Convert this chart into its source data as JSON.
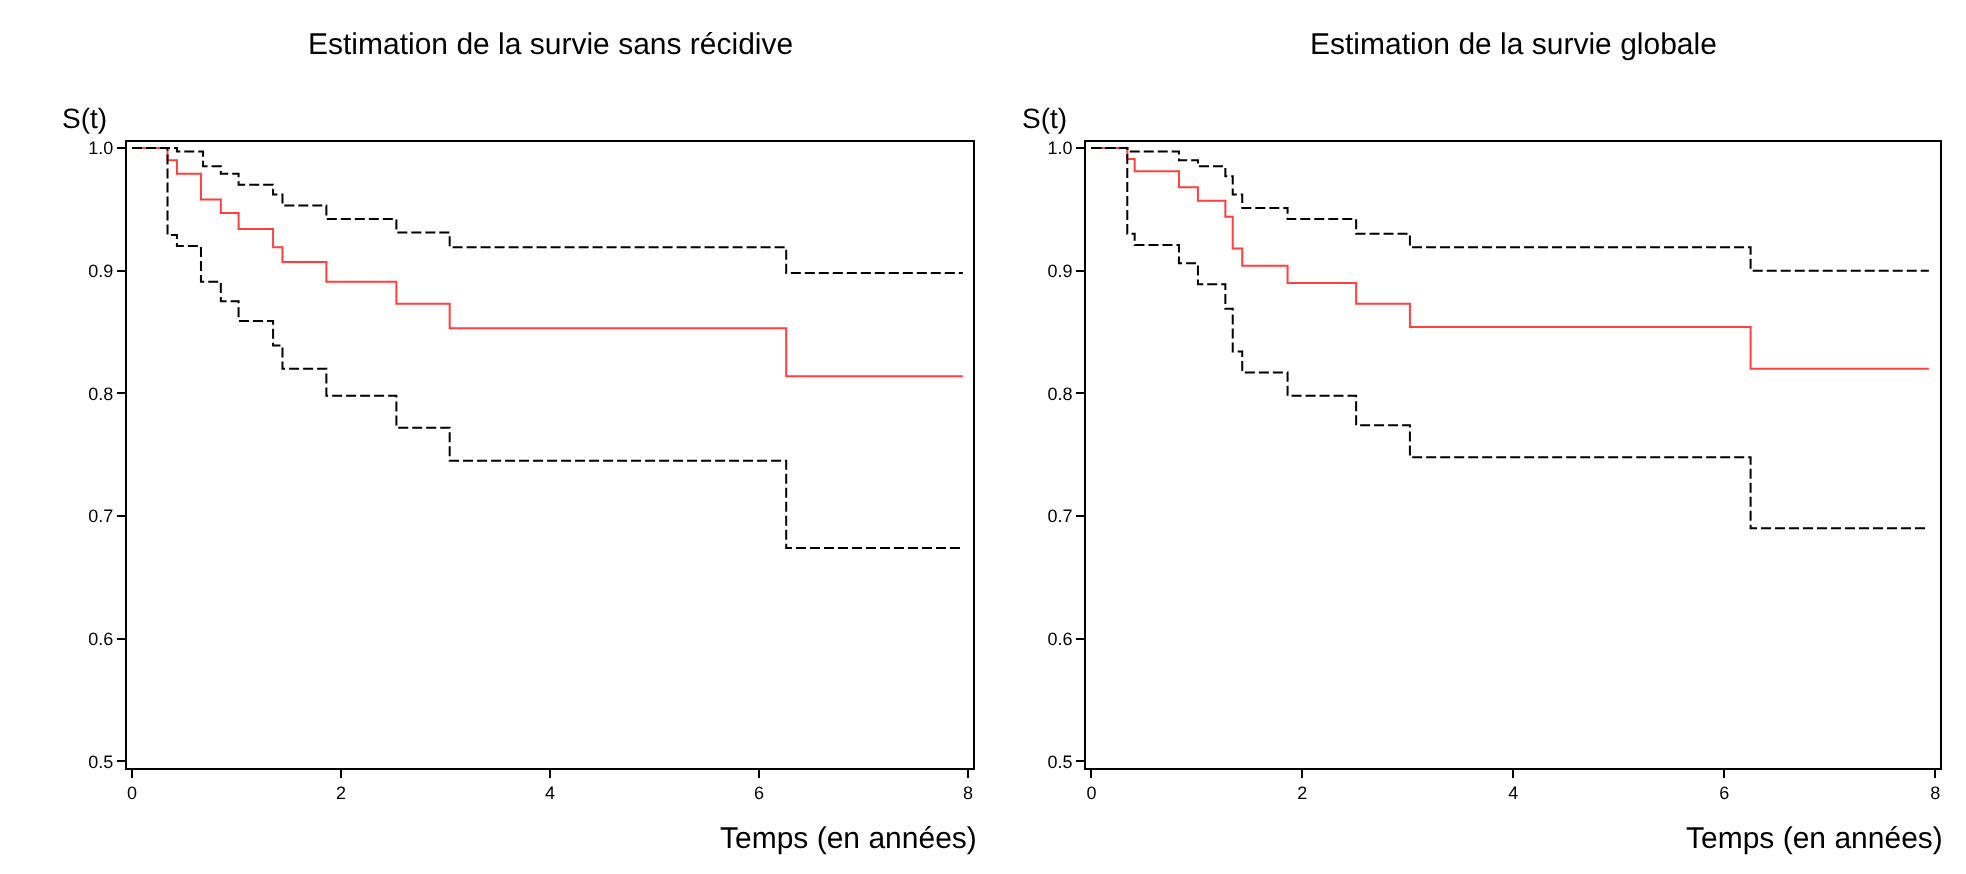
{
  "chart_data": [
    {
      "type": "step",
      "title": "Estimation de la survie sans récidive",
      "xlabel": "Temps (en années)",
      "ylabel": "S(t)",
      "xlim": [
        -0.05,
        8.05
      ],
      "ylim": [
        0.495,
        1.005
      ],
      "xticks": [
        0,
        2,
        4,
        6,
        8
      ],
      "yticks": [
        {
          "value": 0.5,
          "label": "0.5"
        },
        {
          "value": 0.6,
          "label": "0.6"
        },
        {
          "value": 0.7,
          "label": "0.7"
        },
        {
          "value": 0.8,
          "label": "0.8"
        },
        {
          "value": 0.9,
          "label": "0.9"
        },
        {
          "value": 1.0,
          "label": "1.0"
        }
      ],
      "marker": "none",
      "series": [
        {
          "color": "#ff4040",
          "line_style": "solid",
          "x": [
            0,
            0.34,
            0.43,
            0.66,
            0.85,
            1.02,
            1.35,
            1.44,
            1.86,
            2.53,
            3.04,
            6.26,
            7.95
          ],
          "values": [
            1.0,
            0.99,
            0.979,
            0.958,
            0.947,
            0.934,
            0.919,
            0.907,
            0.891,
            0.873,
            0.853,
            0.814,
            0.814
          ]
        },
        {
          "color": "#000000",
          "line_style": "dashed",
          "x": [
            0,
            0.43,
            0.68,
            0.85,
            1.02,
            1.35,
            1.44,
            1.86,
            2.53,
            3.04,
            6.26,
            7.95
          ],
          "values": [
            1.0,
            0.997,
            0.985,
            0.979,
            0.97,
            0.962,
            0.953,
            0.942,
            0.931,
            0.919,
            0.898,
            0.898
          ]
        },
        {
          "color": "#000000",
          "line_style": "dashed",
          "x": [
            0,
            0.34,
            0.43,
            0.66,
            0.85,
            1.02,
            1.35,
            1.44,
            1.86,
            2.53,
            3.04,
            6.26,
            7.95
          ],
          "values": [
            1.0,
            0.929,
            0.92,
            0.891,
            0.875,
            0.859,
            0.839,
            0.82,
            0.798,
            0.772,
            0.745,
            0.674,
            0.674
          ]
        }
      ]
    },
    {
      "type": "step",
      "title": "Estimation de la survie globale",
      "xlabel": "Temps (en années)",
      "ylabel": "S(t)",
      "xlim": [
        -0.05,
        8.05
      ],
      "ylim": [
        0.495,
        1.005
      ],
      "xticks": [
        0,
        2,
        4,
        6,
        8
      ],
      "yticks": [
        {
          "value": 0.5,
          "label": "0.5"
        },
        {
          "value": 0.6,
          "label": "0.6"
        },
        {
          "value": 0.7,
          "label": "0.7"
        },
        {
          "value": 0.8,
          "label": "0.8"
        },
        {
          "value": 0.9,
          "label": "0.9"
        },
        {
          "value": 1.0,
          "label": "1.0"
        }
      ],
      "marker": "none",
      "series": [
        {
          "color": "#ff4040",
          "line_style": "solid",
          "x": [
            0,
            0.34,
            0.41,
            0.83,
            1.01,
            1.27,
            1.34,
            1.43,
            1.86,
            2.51,
            3.02,
            6.25,
            7.94
          ],
          "values": [
            1.0,
            0.991,
            0.981,
            0.968,
            0.957,
            0.944,
            0.918,
            0.904,
            0.89,
            0.873,
            0.854,
            0.82,
            0.82
          ]
        },
        {
          "color": "#000000",
          "line_style": "dashed",
          "x": [
            0,
            0.34,
            0.83,
            1.01,
            1.27,
            1.34,
            1.43,
            1.86,
            2.51,
            3.02,
            6.25,
            7.94
          ],
          "values": [
            1.0,
            0.997,
            0.99,
            0.985,
            0.977,
            0.962,
            0.951,
            0.942,
            0.93,
            0.919,
            0.9,
            0.9
          ]
        },
        {
          "color": "#000000",
          "line_style": "dashed",
          "x": [
            0,
            0.34,
            0.41,
            0.83,
            1.01,
            1.27,
            1.34,
            1.43,
            1.86,
            2.51,
            3.02,
            6.25,
            7.94
          ],
          "values": [
            1.0,
            0.93,
            0.921,
            0.906,
            0.889,
            0.869,
            0.834,
            0.817,
            0.798,
            0.774,
            0.748,
            0.69,
            0.69
          ]
        }
      ]
    }
  ]
}
